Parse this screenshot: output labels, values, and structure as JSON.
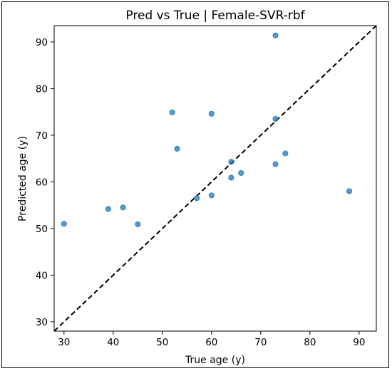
{
  "chart_data": {
    "type": "scatter",
    "title": "Pred vs True | Female-SVR-rbf",
    "xlabel": "True age (y)",
    "ylabel": "Predicted age (y)",
    "xlim": [
      28,
      93.5
    ],
    "ylim": [
      28,
      93.5
    ],
    "xticks": [
      30,
      40,
      50,
      60,
      70,
      80,
      90
    ],
    "yticks": [
      30,
      40,
      50,
      60,
      70,
      80,
      90
    ],
    "grid": false,
    "identity_line": {
      "style": "dashed",
      "color": "#000000"
    },
    "point_color": "#1f77b4",
    "points": [
      {
        "x": 30,
        "y": 51.0
      },
      {
        "x": 39,
        "y": 54.2
      },
      {
        "x": 42,
        "y": 54.5
      },
      {
        "x": 45,
        "y": 50.9
      },
      {
        "x": 52,
        "y": 74.9
      },
      {
        "x": 53,
        "y": 67.1
      },
      {
        "x": 57,
        "y": 56.5
      },
      {
        "x": 60,
        "y": 74.6
      },
      {
        "x": 60,
        "y": 57.1
      },
      {
        "x": 64,
        "y": 64.3
      },
      {
        "x": 64,
        "y": 60.9
      },
      {
        "x": 66,
        "y": 61.9
      },
      {
        "x": 73,
        "y": 91.4
      },
      {
        "x": 73,
        "y": 73.5
      },
      {
        "x": 73,
        "y": 63.8
      },
      {
        "x": 75,
        "y": 66.1
      },
      {
        "x": 88,
        "y": 58.0
      }
    ]
  }
}
